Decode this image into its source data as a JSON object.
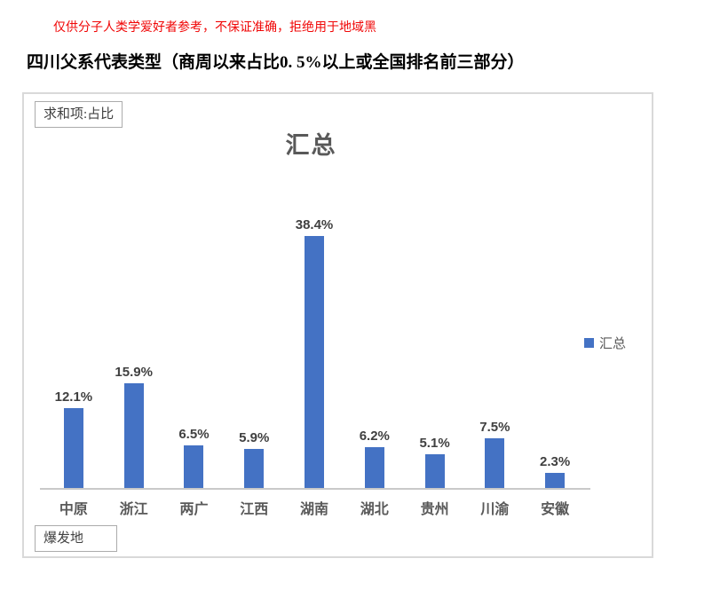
{
  "page": {
    "disclaimer": "仅供分子人类学爱好者参考，不保证准确，拒绝用于地域黑",
    "title": "四川父系代表类型（商周以来占比0. 5%以上或全国排名前三部分）"
  },
  "pivot": {
    "value_field_button": "求和项:占比",
    "axis_field_button": "爆发地"
  },
  "chart_data": {
    "type": "bar",
    "title": "汇总",
    "categories": [
      "中原",
      "浙江",
      "两广",
      "江西",
      "湖南",
      "湖北",
      "贵州",
      "川渝",
      "安徽"
    ],
    "values": [
      12.1,
      15.9,
      6.5,
      5.9,
      38.4,
      6.2,
      5.1,
      7.5,
      2.3
    ],
    "data_labels": [
      "12.1%",
      "15.9%",
      "6.5%",
      "5.9%",
      "38.4%",
      "6.2%",
      "5.1%",
      "7.5%",
      "2.3%"
    ],
    "series_name": "汇总",
    "legend": [
      "汇总"
    ],
    "legend_position": "right",
    "xlabel": "",
    "ylabel": "",
    "ylim": [
      0,
      40
    ],
    "gridlines": false,
    "bar_color": "#4472C4"
  },
  "colors": {
    "bar": "#4472C4",
    "disclaimer_text": "#f00606",
    "axis_line": "#c9c9c9",
    "data_label_text": "#404040",
    "category_text": "#595959"
  }
}
